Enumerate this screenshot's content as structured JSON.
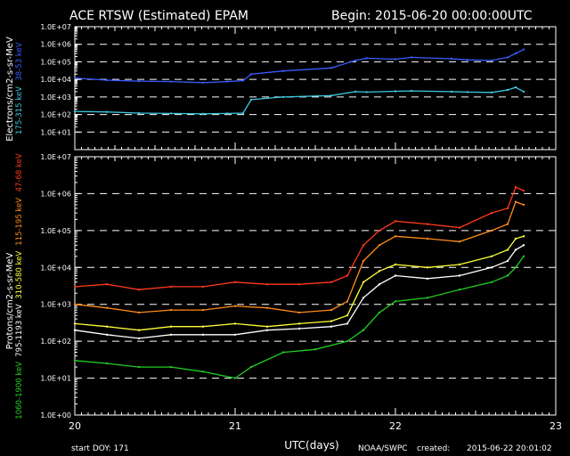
{
  "header": {
    "title": "ACE RTSW (Estimated) EPAM",
    "begin": "Begin: 2015-06-20 00:00:00UTC"
  },
  "footer": {
    "start_doy": "start DOY:  171",
    "xlabel": "UTC(days)",
    "agency": "NOAA/SWPC",
    "created_label": "created:",
    "created": "2015-06-22 20:01:02"
  },
  "colors": {
    "background": "#000000",
    "frame": "#ffffff",
    "e38": "#3a5cff",
    "e175": "#3ec8e0",
    "p47": "#ff3a1a",
    "p115": "#ff8c1a",
    "p310": "#ffff3a",
    "p795": "#ffffff",
    "p1060": "#22cc22"
  },
  "chart_data": [
    {
      "type": "line",
      "panel": "electrons",
      "ylabel": "Electrons/cm2-s-sr-MeV",
      "yscale": "log",
      "ylim": [
        1,
        10000000
      ],
      "xlim": [
        20,
        23
      ],
      "yticks": [
        "1.0E+01",
        "1.0E+02",
        "1.0E+03",
        "1.0E+04",
        "1.0E+05",
        "1.0E+06",
        "1.0E+07"
      ],
      "xticks": [
        "20",
        "21",
        "22",
        "23"
      ],
      "channel_labels": [
        "175-315 keV",
        "38-53 keV"
      ],
      "series": [
        {
          "name": "38-53 keV",
          "color": "#3a5cff",
          "x": [
            20.0,
            20.2,
            20.4,
            20.6,
            20.8,
            20.95,
            21.05,
            21.1,
            21.3,
            21.6,
            21.75,
            21.82,
            22.0,
            22.1,
            22.35,
            22.45,
            22.6,
            22.7,
            22.75,
            22.8
          ],
          "y": [
            12000,
            9000,
            8000,
            7500,
            6500,
            7500,
            8500,
            20000,
            30000,
            45000,
            120000,
            160000,
            140000,
            180000,
            150000,
            130000,
            120000,
            180000,
            300000,
            500000
          ]
        },
        {
          "name": "175-315 keV",
          "color": "#3ec8e0",
          "x": [
            20.0,
            20.2,
            20.4,
            20.6,
            20.8,
            20.95,
            21.05,
            21.1,
            21.3,
            21.6,
            21.75,
            21.82,
            22.0,
            22.1,
            22.35,
            22.45,
            22.6,
            22.7,
            22.75,
            22.8
          ],
          "y": [
            150,
            140,
            120,
            115,
            110,
            115,
            120,
            700,
            1000,
            1200,
            2000,
            1900,
            2100,
            2200,
            2000,
            1900,
            1800,
            2500,
            3500,
            2000
          ]
        }
      ]
    },
    {
      "type": "line",
      "panel": "protons",
      "ylabel": "Protons/cm2-s-sr-MeV",
      "yscale": "log",
      "ylim": [
        1,
        10000000
      ],
      "xlim": [
        20,
        23
      ],
      "yticks": [
        "1.0E+00",
        "1.0E+01",
        "1.0E+02",
        "1.0E+03",
        "1.0E+04",
        "1.0E+05",
        "1.0E+06",
        "1.0E+07"
      ],
      "xticks": [
        "20",
        "21",
        "22",
        "23"
      ],
      "channel_labels": [
        "1060-1900 keV",
        "795-1193 keV",
        "310-580 keV",
        "115-195 keV",
        "47-68 keV"
      ],
      "series": [
        {
          "name": "47-68 keV",
          "color": "#ff3a1a",
          "x": [
            20.0,
            20.2,
            20.4,
            20.6,
            20.8,
            21.0,
            21.2,
            21.4,
            21.6,
            21.7,
            21.8,
            21.9,
            22.0,
            22.2,
            22.4,
            22.6,
            22.7,
            22.75,
            22.8
          ],
          "y": [
            3000,
            3500,
            2500,
            3000,
            3000,
            4000,
            3500,
            3500,
            4000,
            6000,
            40000,
            100000,
            180000,
            150000,
            120000,
            300000,
            400000,
            1500000,
            1200000
          ]
        },
        {
          "name": "115-195 keV",
          "color": "#ff8c1a",
          "x": [
            20.0,
            20.2,
            20.4,
            20.6,
            20.8,
            21.0,
            21.2,
            21.4,
            21.6,
            21.7,
            21.8,
            21.9,
            22.0,
            22.2,
            22.4,
            22.6,
            22.7,
            22.75,
            22.8
          ],
          "y": [
            1000,
            800,
            600,
            700,
            700,
            900,
            800,
            600,
            700,
            1200,
            15000,
            40000,
            70000,
            60000,
            50000,
            100000,
            150000,
            600000,
            500000
          ]
        },
        {
          "name": "310-580 keV",
          "color": "#ffff3a",
          "x": [
            20.0,
            20.2,
            20.4,
            20.6,
            20.8,
            21.0,
            21.2,
            21.4,
            21.6,
            21.7,
            21.8,
            21.9,
            22.0,
            22.2,
            22.4,
            22.6,
            22.7,
            22.75,
            22.8
          ],
          "y": [
            300,
            250,
            200,
            250,
            250,
            300,
            250,
            300,
            350,
            500,
            4000,
            8000,
            12000,
            10000,
            12000,
            20000,
            30000,
            60000,
            70000
          ]
        },
        {
          "name": "795-1193 keV",
          "color": "#ffffff",
          "x": [
            20.0,
            20.2,
            20.4,
            20.6,
            20.8,
            21.0,
            21.2,
            21.4,
            21.6,
            21.7,
            21.8,
            21.9,
            22.0,
            22.2,
            22.4,
            22.6,
            22.7,
            22.75,
            22.8
          ],
          "y": [
            200,
            150,
            120,
            150,
            150,
            150,
            200,
            220,
            250,
            300,
            1500,
            3500,
            6000,
            5000,
            6000,
            10000,
            15000,
            30000,
            40000
          ]
        },
        {
          "name": "1060-1900 keV",
          "color": "#22cc22",
          "x": [
            20.0,
            20.2,
            20.4,
            20.6,
            20.8,
            21.0,
            21.1,
            21.3,
            21.5,
            21.7,
            21.8,
            21.9,
            22.0,
            22.2,
            22.4,
            22.6,
            22.7,
            22.75,
            22.8
          ],
          "y": [
            30,
            25,
            20,
            20,
            15,
            10,
            20,
            50,
            60,
            100,
            200,
            600,
            1200,
            1500,
            2500,
            4000,
            6000,
            10000,
            20000
          ]
        }
      ]
    }
  ]
}
